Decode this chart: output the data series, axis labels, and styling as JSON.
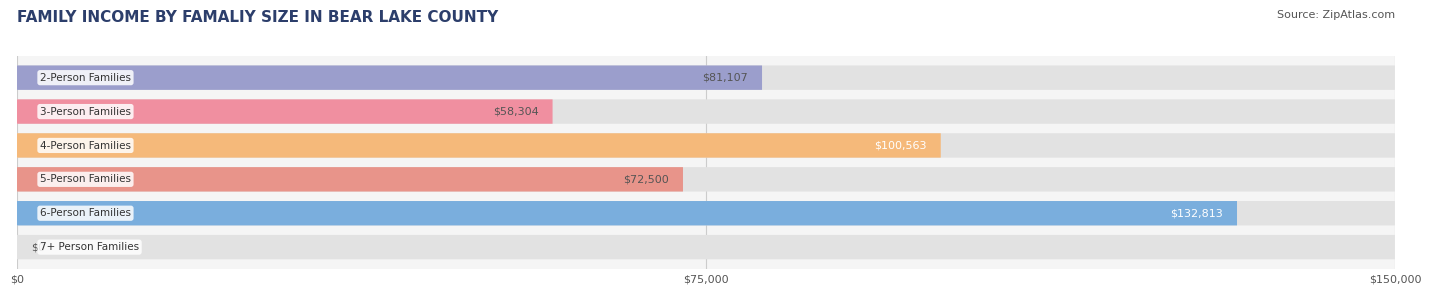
{
  "title": "FAMILY INCOME BY FAMALIY SIZE IN BEAR LAKE COUNTY",
  "source": "Source: ZipAtlas.com",
  "categories": [
    "2-Person Families",
    "3-Person Families",
    "4-Person Families",
    "5-Person Families",
    "6-Person Families",
    "7+ Person Families"
  ],
  "values": [
    81107,
    58304,
    100563,
    72500,
    132813,
    0
  ],
  "labels": [
    "$81,107",
    "$58,304",
    "$100,563",
    "$72,500",
    "$132,813",
    "$0"
  ],
  "bar_colors": [
    "#9b9ecc",
    "#f08fa0",
    "#f5b97a",
    "#e8948a",
    "#7aaedd",
    "#c8b8d8"
  ],
  "label_colors": [
    "#555555",
    "#555555",
    "#ffffff",
    "#555555",
    "#ffffff",
    "#555555"
  ],
  "xlim": [
    0,
    150000
  ],
  "xticks": [
    0,
    75000,
    150000
  ],
  "xticklabels": [
    "$0",
    "$75,000",
    "$150,000"
  ],
  "title_fontsize": 11,
  "source_fontsize": 8,
  "label_fontsize": 8,
  "tick_fontsize": 8,
  "category_fontsize": 7.5
}
